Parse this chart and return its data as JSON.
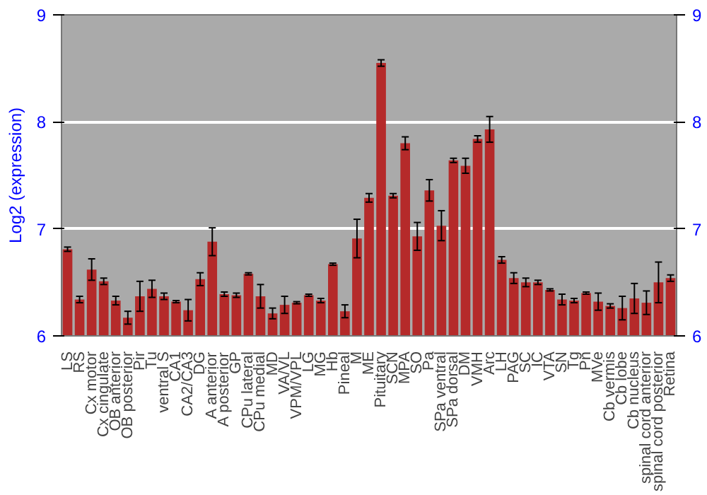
{
  "chart_data": {
    "type": "bar",
    "ylabel": "Log2 (expression)",
    "categories": [
      "LS",
      "RS",
      "Cx motor",
      "Cx cingulate",
      "OB anterior",
      "OB posterior",
      "Pir",
      "Tu",
      "ventral S",
      "CA1",
      "CA2/CA3",
      "DG",
      "A anterior",
      "A posterior",
      "GP",
      "CPu lateral",
      "CPu medial",
      "MD",
      "VA/VL",
      "VPM/VPL",
      "LG",
      "MG",
      "Hb",
      "Pineal",
      "M",
      "ME",
      "Pituitary",
      "SCN",
      "MPA",
      "SO",
      "Pa",
      "SPa ventral",
      "SPa dorsal",
      "DM",
      "VMH",
      "Arc",
      "LH",
      "PAG",
      "SC",
      "IC",
      "VTA",
      "SN",
      "Tg",
      "Pn",
      "MVe",
      "Cb vermis",
      "Cb lobe",
      "Cb nucleus",
      "spinal cord anterior",
      "spinal cord posterior",
      "Retina"
    ],
    "values": [
      6.81,
      6.34,
      6.62,
      6.51,
      6.33,
      6.17,
      6.37,
      6.44,
      6.37,
      6.32,
      6.24,
      6.53,
      6.88,
      6.39,
      6.38,
      6.58,
      6.37,
      6.21,
      6.29,
      6.31,
      6.38,
      6.33,
      6.67,
      6.23,
      6.91,
      7.29,
      8.55,
      7.31,
      7.8,
      6.93,
      7.36,
      7.03,
      7.64,
      7.59,
      7.84,
      7.93,
      6.71,
      6.54,
      6.5,
      6.5,
      6.43,
      6.34,
      6.33,
      6.4,
      6.32,
      6.28,
      6.26,
      6.35,
      6.31,
      6.5,
      6.54
    ],
    "errors": [
      0.02,
      0.03,
      0.1,
      0.03,
      0.04,
      0.06,
      0.14,
      0.08,
      0.03,
      0.01,
      0.1,
      0.06,
      0.13,
      0.02,
      0.02,
      0.01,
      0.11,
      0.05,
      0.08,
      0.01,
      0.01,
      0.02,
      0.01,
      0.06,
      0.18,
      0.04,
      0.03,
      0.02,
      0.06,
      0.13,
      0.1,
      0.14,
      0.02,
      0.07,
      0.03,
      0.12,
      0.03,
      0.05,
      0.04,
      0.02,
      0.01,
      0.05,
      0.02,
      0.01,
      0.08,
      0.02,
      0.11,
      0.14,
      0.11,
      0.19,
      0.03
    ],
    "color": "#b52a2a",
    "ylim": [
      6,
      9
    ],
    "yticks": [
      6,
      7,
      8,
      9
    ],
    "y2lim": [
      6,
      9
    ],
    "y2ticks": [
      6,
      7,
      8,
      9
    ],
    "grid": "y"
  }
}
